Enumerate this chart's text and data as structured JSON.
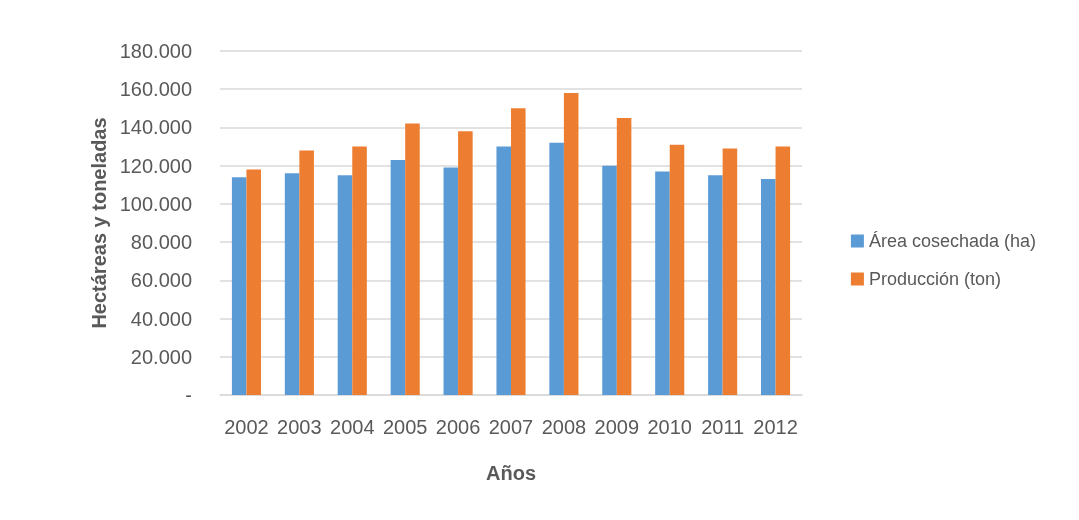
{
  "chart_data": {
    "type": "bar",
    "xlabel": "Años",
    "ylabel": "Hectáreas y toneladas",
    "categories": [
      "2002",
      "2003",
      "2004",
      "2005",
      "2006",
      "2007",
      "2008",
      "2009",
      "2010",
      "2011",
      "2012"
    ],
    "series": [
      {
        "name": "Área cosechada (ha)",
        "color": "#5b9bd5",
        "values": [
          114000,
          116000,
          115000,
          123000,
          119000,
          130000,
          132000,
          120000,
          117000,
          115000,
          113000
        ]
      },
      {
        "name": "Producción (ton)",
        "color": "#ed7d31",
        "values": [
          118000,
          128000,
          130000,
          142000,
          138000,
          150000,
          158000,
          145000,
          131000,
          129000,
          130000
        ]
      }
    ],
    "ylim": [
      0,
      180000
    ],
    "yticks": [
      {
        "value": 0,
        "label": "-"
      },
      {
        "value": 20000,
        "label": "20.000"
      },
      {
        "value": 40000,
        "label": "40.000"
      },
      {
        "value": 60000,
        "label": "60.000"
      },
      {
        "value": 80000,
        "label": "80.000"
      },
      {
        "value": 100000,
        "label": "100.000"
      },
      {
        "value": 120000,
        "label": "120.000"
      },
      {
        "value": 140000,
        "label": "140.000"
      },
      {
        "value": 160000,
        "label": "160.000"
      },
      {
        "value": 180000,
        "label": "180.000"
      }
    ],
    "grid": "y",
    "legend": "right"
  }
}
